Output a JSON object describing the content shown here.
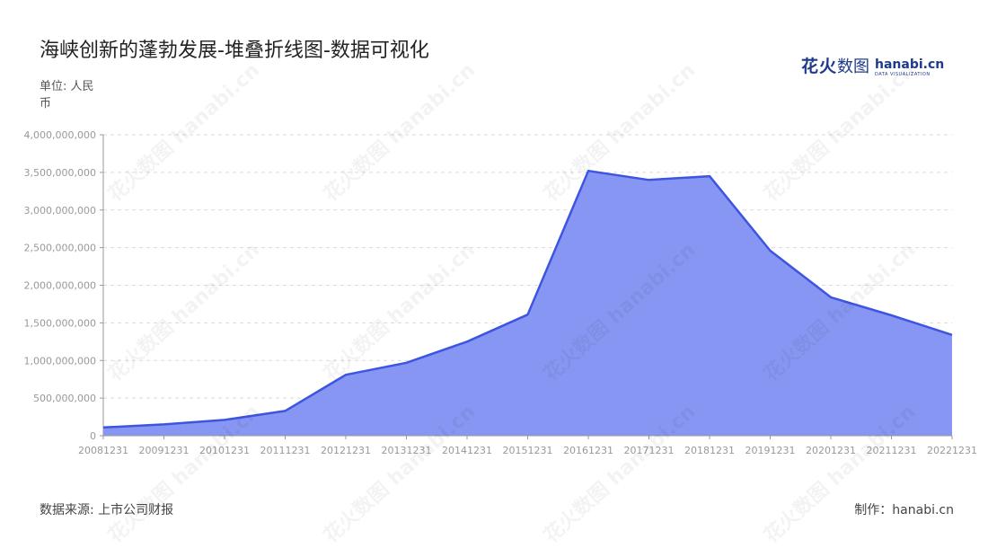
{
  "header": {
    "title": "海峡创新的蓬勃发展-堆叠折线图-数据可视化",
    "unit": "单位: 人民币"
  },
  "brand": {
    "name_cn_bold": "花火",
    "name_cn": "数图",
    "name_latin": "hanabi.cn",
    "tagline": "DATA VISUALIZATION"
  },
  "footer": {
    "source": "数据来源: 上市公司财报",
    "maker": "制作：hanabi.cn"
  },
  "watermark": {
    "text": "花火数图 hanabi.cn"
  },
  "colors": {
    "area_fill": "#8796f2",
    "line": "#3d55e0",
    "grid": "#d9d9d9",
    "axis": "#999999",
    "tick_text": "#999999"
  },
  "chart_data": {
    "type": "area",
    "title": "海峡创新的蓬勃发展-堆叠折线图-数据可视化",
    "ylabel": "单位: 人民币",
    "xlabel": "",
    "ylim": [
      0,
      4000000000
    ],
    "y_ticks": [
      0,
      500000000,
      1000000000,
      1500000000,
      2000000000,
      2500000000,
      3000000000,
      3500000000,
      4000000000
    ],
    "y_tick_labels": [
      "0",
      "500,000,000",
      "1,000,000,000",
      "1,500,000,000",
      "2,000,000,000",
      "2,500,000,000",
      "3,000,000,000",
      "3,500,000,000",
      "4,000,000,000"
    ],
    "grid": true,
    "legend": "none",
    "categories": [
      "20081231",
      "20091231",
      "20101231",
      "20111231",
      "20121231",
      "20131231",
      "20141231",
      "20151231",
      "20161231",
      "20171231",
      "20181231",
      "20191231",
      "20201231",
      "20211231",
      "20221231"
    ],
    "series": [
      {
        "values": [
          110000000,
          150000000,
          210000000,
          330000000,
          810000000,
          970000000,
          1250000000,
          1610000000,
          3520000000,
          3400000000,
          3450000000,
          2460000000,
          1840000000,
          1600000000,
          1340000000
        ]
      }
    ]
  }
}
